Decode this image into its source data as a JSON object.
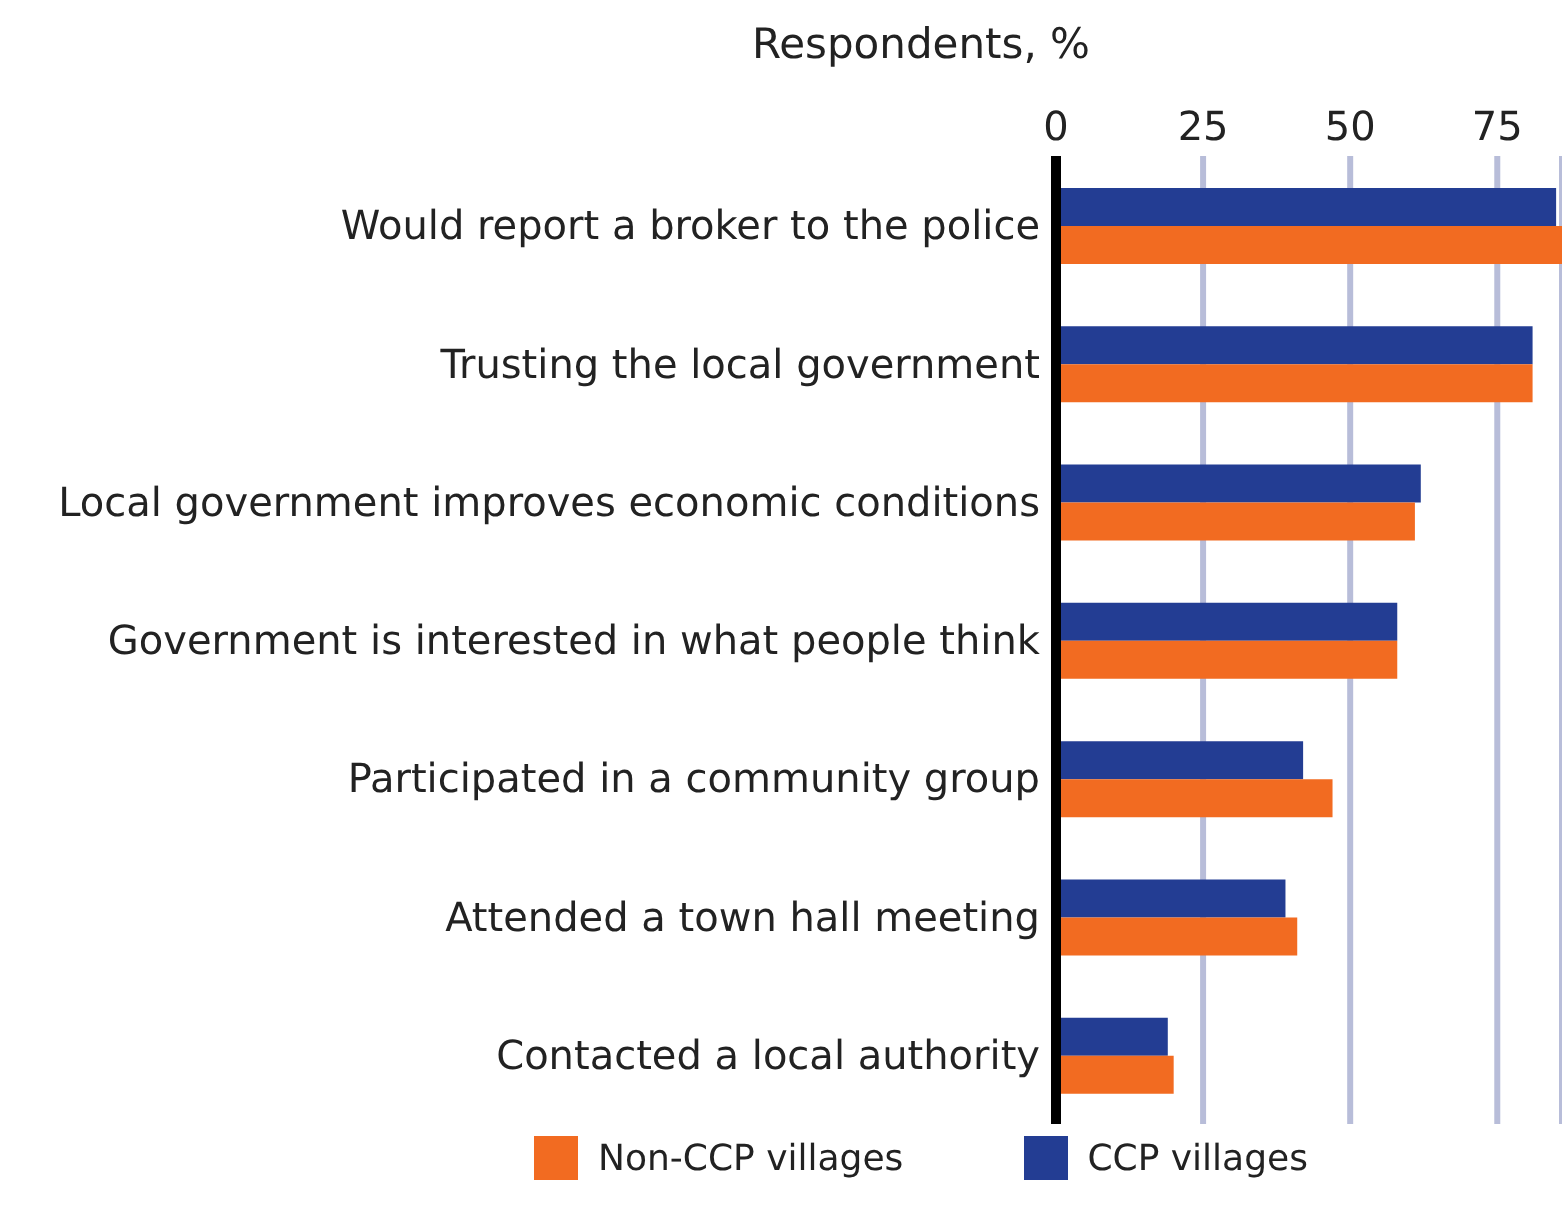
{
  "chart_data": {
    "type": "bar",
    "orientation": "horizontal",
    "xlabel": "Respondents, %",
    "categories": [
      "Would report a broker to the police",
      "Trusting the local government",
      "Local government improves economic conditions",
      "Government is interested in what people think",
      "Participated in a community group",
      "Attended a town hall meeting",
      "Contacted a local authority"
    ],
    "series": [
      {
        "name": "Non-CCP villages",
        "color": "#f26b21",
        "values": [
          86,
          81,
          61,
          58,
          47,
          41,
          20
        ]
      },
      {
        "name": "CCP villages",
        "color": "#233d93",
        "values": [
          85,
          81,
          62,
          58,
          42,
          39,
          19
        ]
      }
    ],
    "xlim": [
      0,
      86
    ],
    "xticks": [
      0,
      25,
      50,
      75
    ],
    "grid": "x",
    "legend": "bottom"
  }
}
